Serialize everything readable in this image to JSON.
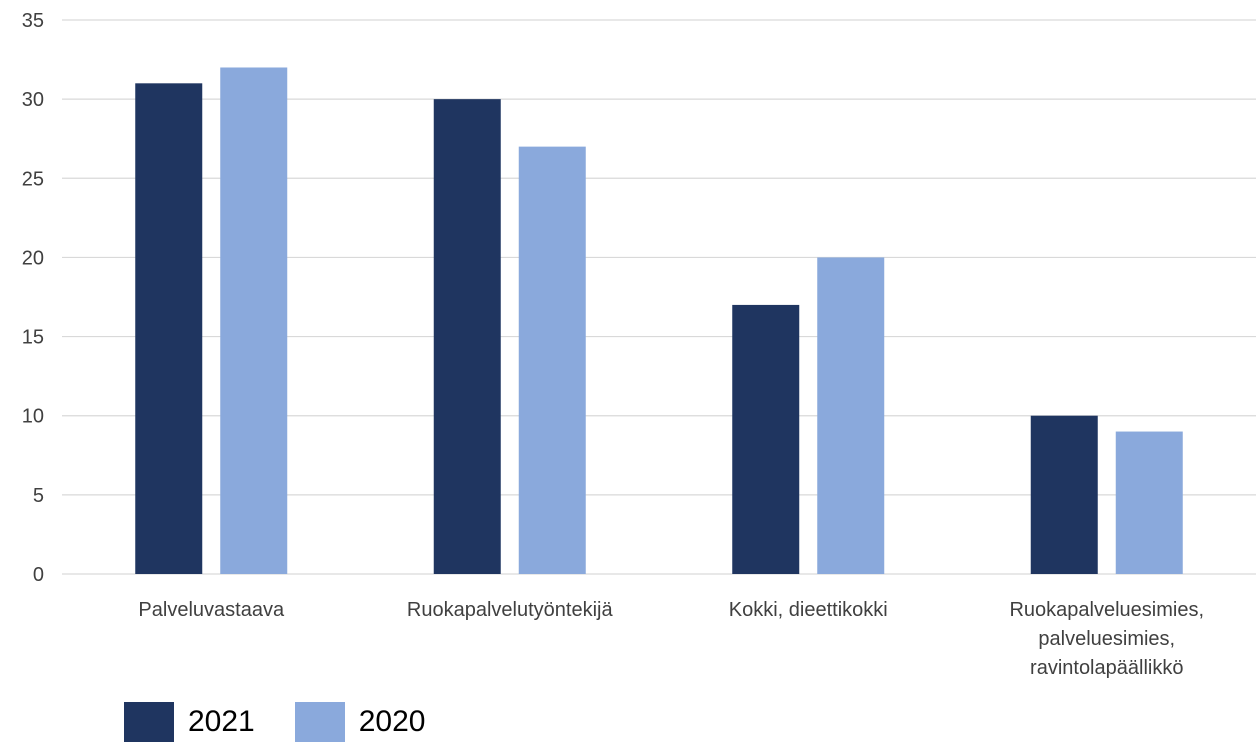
{
  "chart_data": {
    "type": "bar",
    "categories": [
      [
        "Palveluvastaava"
      ],
      [
        "Ruokapalvelutyöntekijä"
      ],
      [
        "Kokki, dieettikokki"
      ],
      [
        "Ruokapalveluesimies,",
        "palveluesimies,",
        "ravintolapäällikkö"
      ]
    ],
    "series": [
      {
        "name": "2021",
        "values": [
          31,
          30,
          17,
          10
        ],
        "color": "#1f3560"
      },
      {
        "name": "2020",
        "values": [
          32,
          27,
          20,
          9
        ],
        "color": "#8aa9dc"
      }
    ],
    "ylim": [
      0,
      35
    ],
    "yticks": [
      0,
      5,
      10,
      15,
      20,
      25,
      30,
      35
    ],
    "grid": true,
    "grid_color": "#d9d9d9",
    "legend_position": "bottom-left",
    "title": "",
    "xlabel": "",
    "ylabel": ""
  },
  "legend": [
    {
      "label": "2021",
      "color": "#1f3560"
    },
    {
      "label": "2020",
      "color": "#8aa9dc"
    }
  ]
}
